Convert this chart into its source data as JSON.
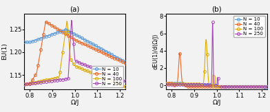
{
  "title_a": "(a)",
  "title_b": "(b)",
  "xlabel": "Ω/J",
  "ylabel_a": "EU(1)",
  "ylabel_b": "dEU(1)/d(Ω/J)",
  "xlim": [
    0.775,
    1.225
  ],
  "ylim_a": [
    1.118,
    1.285
  ],
  "ylim_b": [
    -0.5,
    8.3
  ],
  "yticks_a": [
    1.15,
    1.2,
    1.25
  ],
  "yticks_b": [
    0,
    2,
    4,
    6,
    8
  ],
  "xticks": [
    0.8,
    0.9,
    1.0,
    1.1,
    1.2
  ],
  "colors": {
    "N10": "#5599dd",
    "N40": "#ee6622",
    "N100": "#ddaa00",
    "N250": "#aa44bb"
  },
  "legend_labels": [
    "N = 10",
    "N = 40",
    "N = 100",
    "N = 250"
  ],
  "bg": "#f2f2f2"
}
